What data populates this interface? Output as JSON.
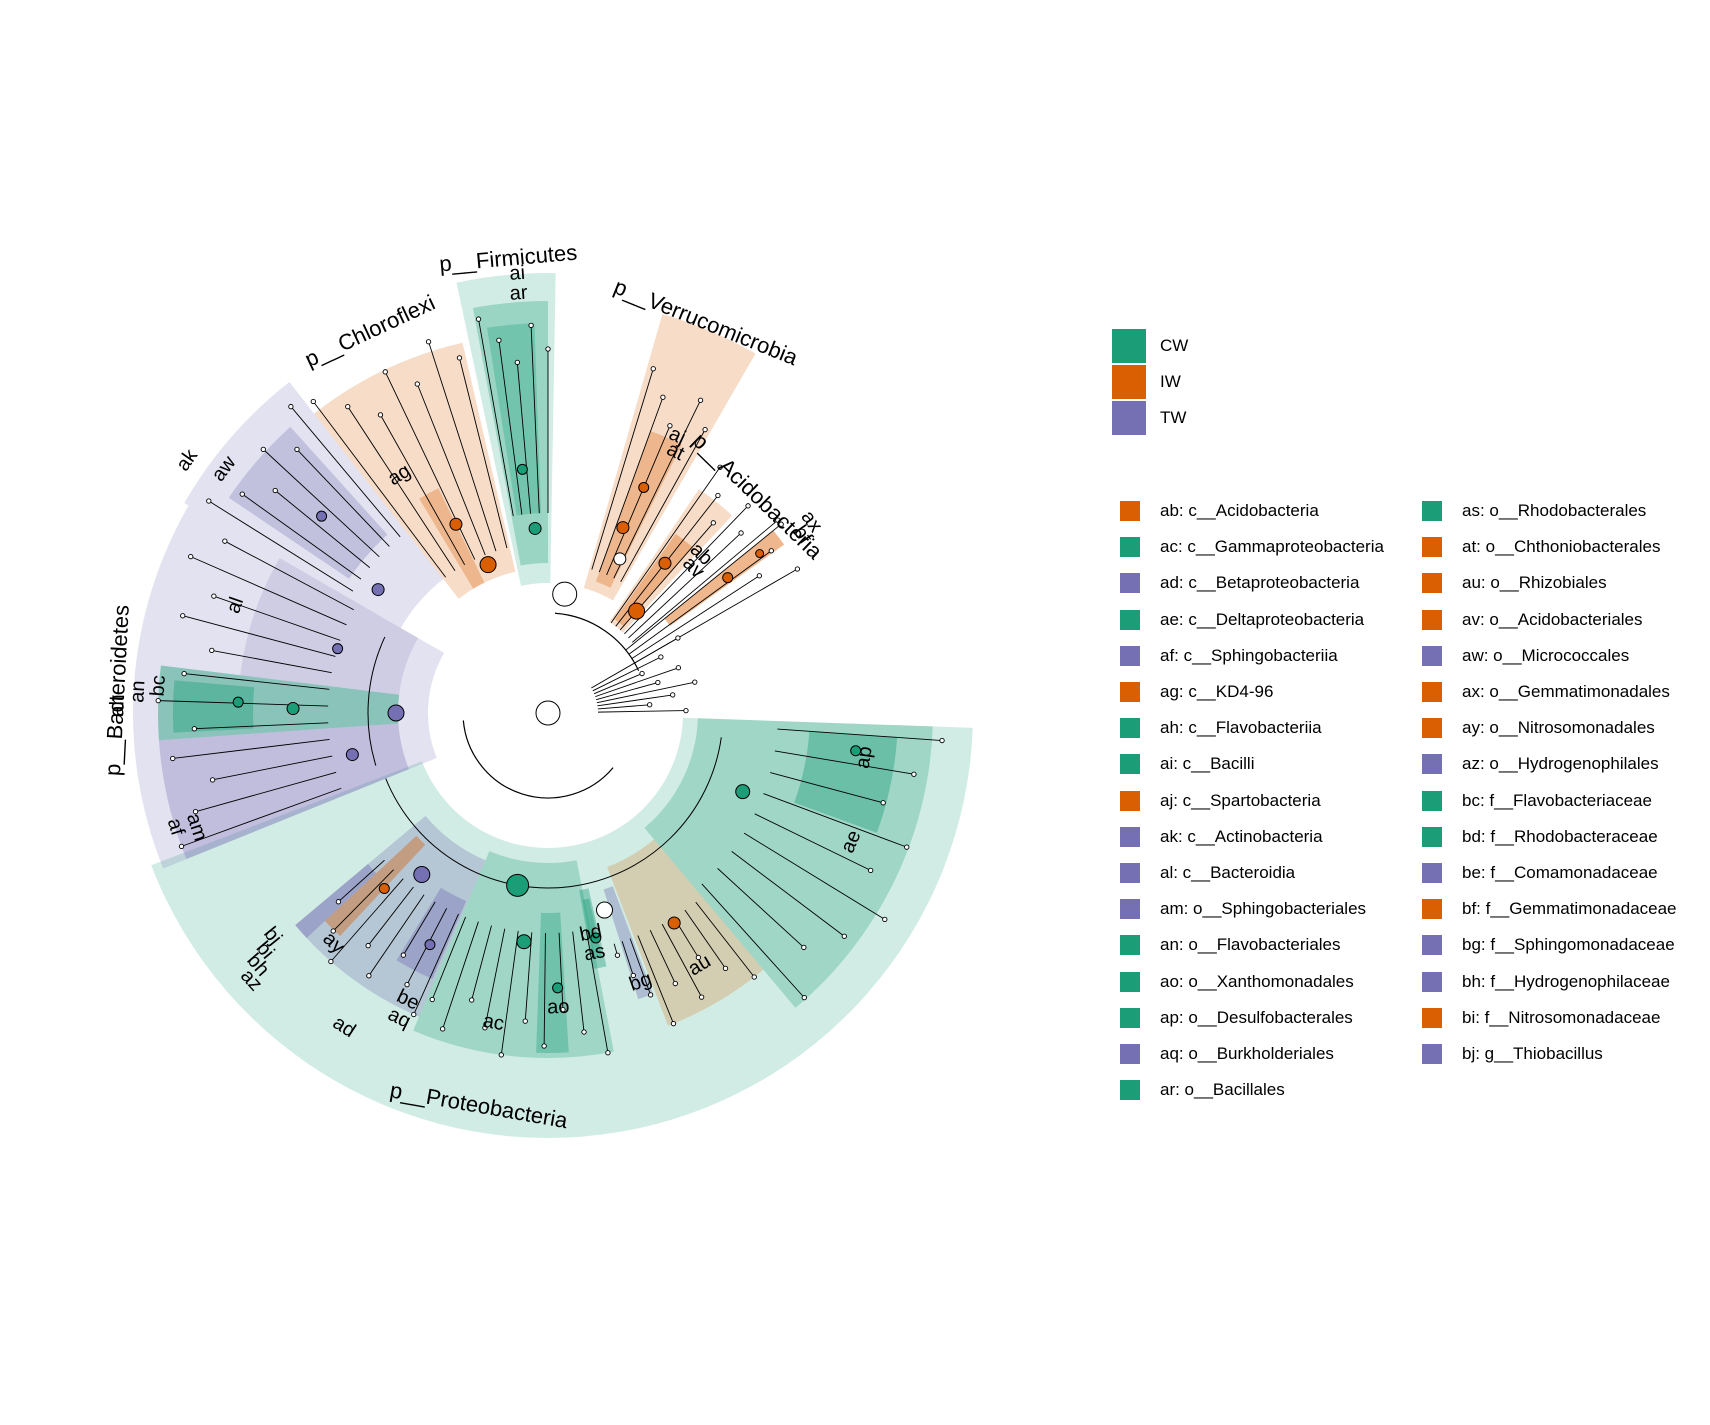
{
  "colors": {
    "CW": "#1b9e77",
    "IW": "#d95f02",
    "TW": "#7570b3",
    "node_empty": "#ffffff"
  },
  "groups": [
    {
      "name": "CW",
      "color": "#1b9e77"
    },
    {
      "name": "IW",
      "color": "#d95f02"
    },
    {
      "name": "TW",
      "color": "#7570b3"
    }
  ],
  "phylum_labels": {
    "firmicutes": "p__Firmicutes",
    "chloroflexi": "p__Chloroflexi",
    "verrucomicrobia": "p__Verrucomicrobia",
    "acidobacteria": "p__Acidobacteria",
    "bacteroidetes": "p__Bacteroidetes",
    "proteobacteria": "p__Proteobacteria"
  },
  "clades": [
    {
      "code": "ab",
      "taxon": "c__Acidobacteria",
      "group": "IW"
    },
    {
      "code": "ac",
      "taxon": "c__Gammaproteobacteria",
      "group": "CW"
    },
    {
      "code": "ad",
      "taxon": "c__Betaproteobacteria",
      "group": "TW"
    },
    {
      "code": "ae",
      "taxon": "c__Deltaproteobacteria",
      "group": "CW"
    },
    {
      "code": "af",
      "taxon": "c__Sphingobacteriia",
      "group": "TW"
    },
    {
      "code": "ag",
      "taxon": "c__KD4-96",
      "group": "IW"
    },
    {
      "code": "ah",
      "taxon": "c__Flavobacteriia",
      "group": "CW"
    },
    {
      "code": "ai",
      "taxon": "c__Bacilli",
      "group": "CW"
    },
    {
      "code": "aj",
      "taxon": "c__Spartobacteria",
      "group": "IW"
    },
    {
      "code": "ak",
      "taxon": "c__Actinobacteria",
      "group": "TW"
    },
    {
      "code": "al",
      "taxon": "c__Bacteroidia",
      "group": "TW"
    },
    {
      "code": "am",
      "taxon": "o__Sphingobacteriales",
      "group": "TW"
    },
    {
      "code": "an",
      "taxon": "o__Flavobacteriales",
      "group": "CW"
    },
    {
      "code": "ao",
      "taxon": "o__Xanthomonadales",
      "group": "CW"
    },
    {
      "code": "ap",
      "taxon": "o__Desulfobacterales",
      "group": "CW"
    },
    {
      "code": "aq",
      "taxon": "o__Burkholderiales",
      "group": "TW"
    },
    {
      "code": "ar",
      "taxon": "o__Bacillales",
      "group": "CW"
    },
    {
      "code": "as",
      "taxon": "o__Rhodobacterales",
      "group": "CW"
    },
    {
      "code": "at",
      "taxon": "o__Chthoniobacterales",
      "group": "IW"
    },
    {
      "code": "au",
      "taxon": "o__Rhizobiales",
      "group": "IW"
    },
    {
      "code": "av",
      "taxon": "o__Acidobacteriales",
      "group": "IW"
    },
    {
      "code": "aw",
      "taxon": "o__Micrococcales",
      "group": "TW"
    },
    {
      "code": "ax",
      "taxon": "o__Gemmatimonadales",
      "group": "IW"
    },
    {
      "code": "ay",
      "taxon": "o__Nitrosomonadales",
      "group": "IW"
    },
    {
      "code": "az",
      "taxon": "o__Hydrogenophilales",
      "group": "TW"
    },
    {
      "code": "bc",
      "taxon": "f__Flavobacteriaceae",
      "group": "CW"
    },
    {
      "code": "bd",
      "taxon": "f__Rhodobacteraceae",
      "group": "CW"
    },
    {
      "code": "be",
      "taxon": "f__Comamonadaceae",
      "group": "TW"
    },
    {
      "code": "bf",
      "taxon": "f__Gemmatimonadaceae",
      "group": "IW"
    },
    {
      "code": "bg",
      "taxon": "f__Sphingomonadaceae",
      "group": "TW"
    },
    {
      "code": "bh",
      "taxon": "f__Hydrogenophilaceae",
      "group": "TW"
    },
    {
      "code": "bi",
      "taxon": "f__Nitrosomonadaceae",
      "group": "IW"
    },
    {
      "code": "bj",
      "taxon": "g__Thiobacillus",
      "group": "TW"
    }
  ]
}
